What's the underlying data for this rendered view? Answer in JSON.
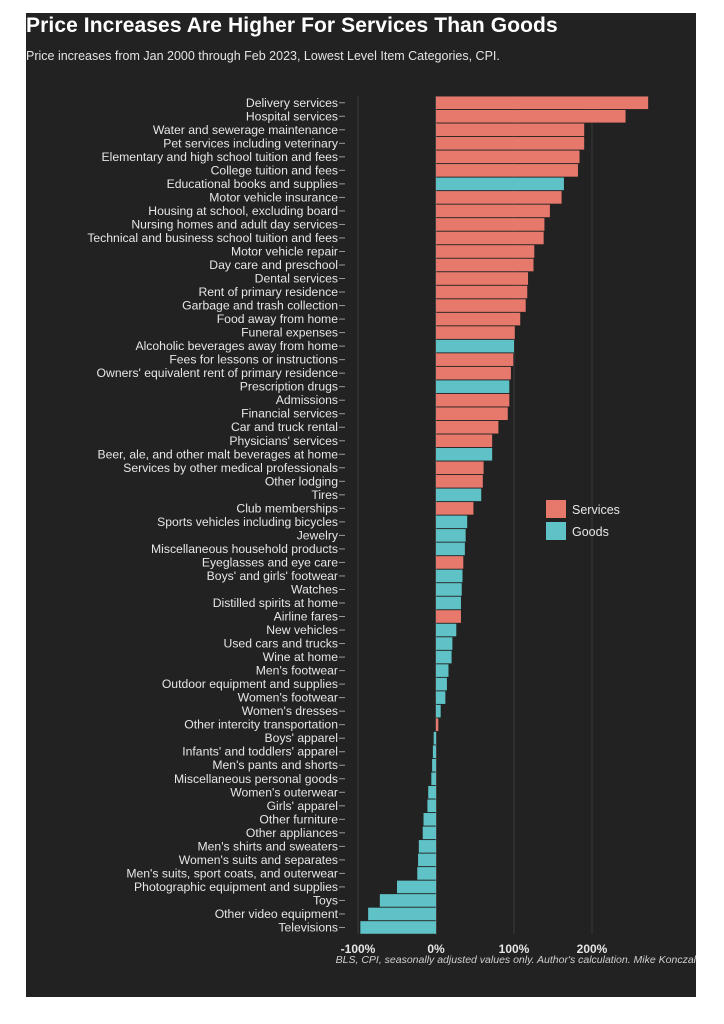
{
  "chart_data": {
    "type": "bar",
    "orientation": "horizontal",
    "title": "Price Increases Are Higher For Services Than Goods",
    "subtitle": "Price increases from Jan 2000 through Feb 2023, Lowest Level Item Categories, CPI.",
    "caption": "BLS, CPI, seasonally adjusted values only. Author's calculation. Mike Konczal",
    "xlabel": "",
    "ylabel": "",
    "xlim": [
      -100,
      270
    ],
    "x_ticks": [
      -100,
      0,
      100,
      200
    ],
    "x_tick_labels": [
      "-100%",
      "0%",
      "100%",
      "200%"
    ],
    "grid": "vertical",
    "legend_position": "right",
    "series": [
      {
        "name": "Services",
        "color": "#e7796c"
      },
      {
        "name": "Goods",
        "color": "#5fc2c6"
      }
    ],
    "bars": [
      {
        "label": "Delivery services",
        "value": 272,
        "group": "Services"
      },
      {
        "label": "Hospital services",
        "value": 243,
        "group": "Services"
      },
      {
        "label": "Water and sewerage maintenance",
        "value": 190,
        "group": "Services"
      },
      {
        "label": "Pet services including veterinary",
        "value": 190,
        "group": "Services"
      },
      {
        "label": "Elementary and high school tuition and fees",
        "value": 184,
        "group": "Services"
      },
      {
        "label": "College tuition and fees",
        "value": 182,
        "group": "Services"
      },
      {
        "label": "Educational books and supplies",
        "value": 164,
        "group": "Goods"
      },
      {
        "label": "Motor vehicle insurance",
        "value": 161,
        "group": "Services"
      },
      {
        "label": "Housing at school, excluding board",
        "value": 146,
        "group": "Services"
      },
      {
        "label": "Nursing homes and adult day services",
        "value": 139,
        "group": "Services"
      },
      {
        "label": "Technical and business school tuition and fees",
        "value": 138,
        "group": "Services"
      },
      {
        "label": "Motor vehicle repair",
        "value": 126,
        "group": "Services"
      },
      {
        "label": "Day care and preschool",
        "value": 125,
        "group": "Services"
      },
      {
        "label": "Dental services",
        "value": 118,
        "group": "Services"
      },
      {
        "label": "Rent of primary residence",
        "value": 117,
        "group": "Services"
      },
      {
        "label": "Garbage and trash collection",
        "value": 115,
        "group": "Services"
      },
      {
        "label": "Food away from home",
        "value": 108,
        "group": "Services"
      },
      {
        "label": "Funeral expenses",
        "value": 101,
        "group": "Services"
      },
      {
        "label": "Alcoholic beverages away from home",
        "value": 100,
        "group": "Goods"
      },
      {
        "label": "Fees for lessons or instructions",
        "value": 99,
        "group": "Services"
      },
      {
        "label": "Owners' equivalent rent of primary residence",
        "value": 96,
        "group": "Services"
      },
      {
        "label": "Prescription drugs",
        "value": 94,
        "group": "Goods"
      },
      {
        "label": "Admissions",
        "value": 94,
        "group": "Services"
      },
      {
        "label": "Financial services",
        "value": 92,
        "group": "Services"
      },
      {
        "label": "Car and truck rental",
        "value": 80,
        "group": "Services"
      },
      {
        "label": "Physicians' services",
        "value": 72,
        "group": "Services"
      },
      {
        "label": "Beer, ale, and other malt beverages at home",
        "value": 72,
        "group": "Goods"
      },
      {
        "label": "Services by other medical professionals",
        "value": 61,
        "group": "Services"
      },
      {
        "label": "Other lodging",
        "value": 60,
        "group": "Services"
      },
      {
        "label": "Tires",
        "value": 58,
        "group": "Goods"
      },
      {
        "label": "Club memberships",
        "value": 48,
        "group": "Services"
      },
      {
        "label": "Sports vehicles including bicycles",
        "value": 40,
        "group": "Goods"
      },
      {
        "label": "Jewelry",
        "value": 38,
        "group": "Goods"
      },
      {
        "label": "Miscellaneous household products",
        "value": 37,
        "group": "Goods"
      },
      {
        "label": "Eyeglasses and eye care",
        "value": 35,
        "group": "Services"
      },
      {
        "label": "Boys' and girls' footwear",
        "value": 34,
        "group": "Goods"
      },
      {
        "label": "Watches",
        "value": 33,
        "group": "Goods"
      },
      {
        "label": "Distilled spirits at home",
        "value": 32,
        "group": "Goods"
      },
      {
        "label": "Airline fares",
        "value": 32,
        "group": "Services"
      },
      {
        "label": "New vehicles",
        "value": 26,
        "group": "Goods"
      },
      {
        "label": "Used cars and trucks",
        "value": 21,
        "group": "Goods"
      },
      {
        "label": "Wine at home",
        "value": 20,
        "group": "Goods"
      },
      {
        "label": "Men's footwear",
        "value": 16,
        "group": "Goods"
      },
      {
        "label": "Outdoor equipment and supplies",
        "value": 14,
        "group": "Goods"
      },
      {
        "label": "Women's footwear",
        "value": 12,
        "group": "Goods"
      },
      {
        "label": "Women's dresses",
        "value": 6,
        "group": "Goods"
      },
      {
        "label": "Other intercity transportation",
        "value": 3,
        "group": "Services"
      },
      {
        "label": "Boys' apparel",
        "value": -3,
        "group": "Goods"
      },
      {
        "label": "Infants' and toddlers' apparel",
        "value": -4,
        "group": "Goods"
      },
      {
        "label": "Men's pants and shorts",
        "value": -5,
        "group": "Goods"
      },
      {
        "label": "Miscellaneous personal goods",
        "value": -6,
        "group": "Goods"
      },
      {
        "label": "Women's outerwear",
        "value": -10,
        "group": "Goods"
      },
      {
        "label": "Girls' apparel",
        "value": -11,
        "group": "Goods"
      },
      {
        "label": "Other furniture",
        "value": -16,
        "group": "Goods"
      },
      {
        "label": "Other appliances",
        "value": -17,
        "group": "Goods"
      },
      {
        "label": "Men's shirts and sweaters",
        "value": -22,
        "group": "Goods"
      },
      {
        "label": "Women's suits and separates",
        "value": -23,
        "group": "Goods"
      },
      {
        "label": "Men's suits, sport coats, and outerwear",
        "value": -24,
        "group": "Goods"
      },
      {
        "label": "Photographic equipment and supplies",
        "value": -50,
        "group": "Goods"
      },
      {
        "label": "Toys",
        "value": -72,
        "group": "Goods"
      },
      {
        "label": "Other video equipment",
        "value": -87,
        "group": "Goods"
      },
      {
        "label": "Televisions",
        "value": -97,
        "group": "Goods"
      }
    ]
  }
}
